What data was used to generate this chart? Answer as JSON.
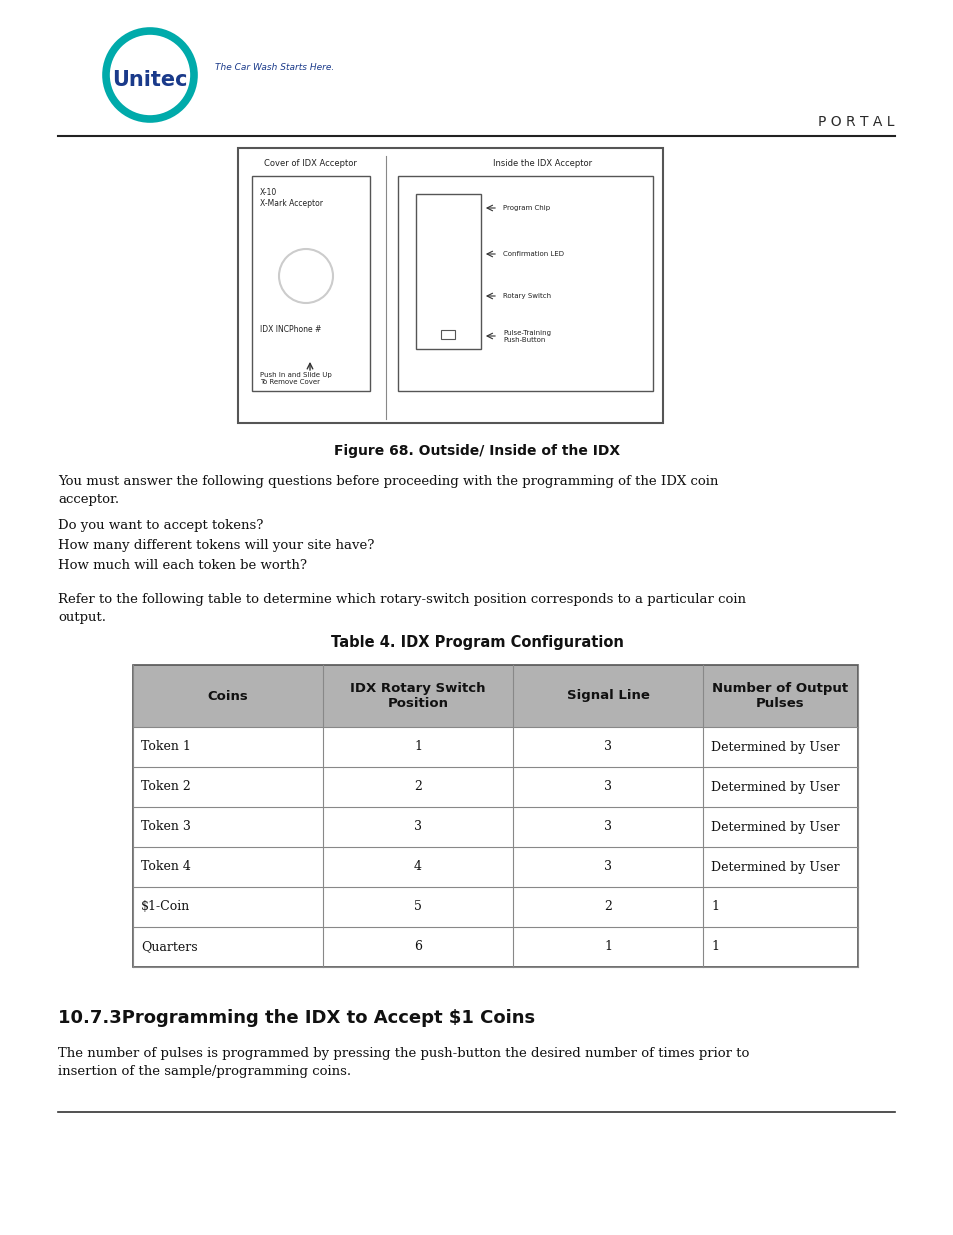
{
  "page_bg": "#ffffff",
  "logo_text": "Unitec",
  "logo_tagline": "The Car Wash Starts Here.",
  "portal_text": "P O R T A L",
  "figure_caption": "Figure 68. Outside/ Inside of the IDX",
  "body_text_1a": "You must answer the following questions before proceeding with the programming of the IDX coin",
  "body_text_1b": "acceptor.",
  "bullet_lines": [
    "Do you want to accept tokens?",
    "How many different tokens will your site have?",
    "How much will each token be worth?"
  ],
  "body_text_2a": "Refer to the following table to determine which rotary-switch position corresponds to a particular coin",
  "body_text_2b": "output.",
  "table_title": "Table 4. IDX Program Configuration",
  "table_headers": [
    "Coins",
    "IDX Rotary Switch\nPosition",
    "Signal Line",
    "Number of Output\nPulses"
  ],
  "table_rows": [
    [
      "Token 1",
      "1",
      "3",
      "Determined by User"
    ],
    [
      "Token 2",
      "2",
      "3",
      "Determined by User"
    ],
    [
      "Token 3",
      "3",
      "3",
      "Determined by User"
    ],
    [
      "Token 4",
      "4",
      "3",
      "Determined by User"
    ],
    [
      "$1-Coin",
      "5",
      "2",
      "1"
    ],
    [
      "Quarters",
      "6",
      "1",
      "1"
    ]
  ],
  "header_bg": "#b2b2b2",
  "section_heading": "10.7.3Programming the IDX to Accept $1 Coins",
  "section_body_a": "The number of pulses is programmed by pressing the push-button the desired number of times prior to",
  "section_body_b": "insertion of the sample/programming coins.",
  "teal_color": "#00aaaa",
  "blue_color": "#1a3a8a",
  "dark_color": "#1a1a1a"
}
